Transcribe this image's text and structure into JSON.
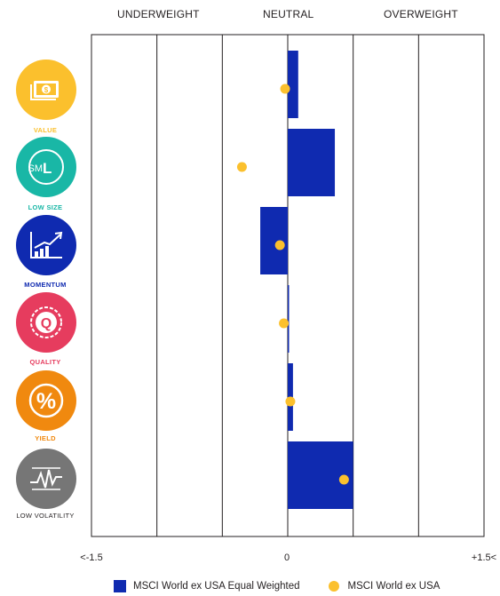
{
  "headers": {
    "left": "UNDERWEIGHT",
    "center": "NEUTRAL",
    "right": "OVERWEIGHT"
  },
  "factors": [
    {
      "label": "VALUE",
      "color": "#fbc02d",
      "icon": "money-bill-icon",
      "glyph": "$"
    },
    {
      "label": "LOW SIZE",
      "color": "#19b7a6",
      "icon": "size-sml-icon",
      "glyph_small": "SM",
      "glyph_large": "L"
    },
    {
      "label": "MOMENTUM",
      "color": "#0f2ab0",
      "icon": "trend-chart-icon"
    },
    {
      "label": "QUALITY",
      "color": "#e63c5e",
      "icon": "quality-badge-icon",
      "glyph": "Q"
    },
    {
      "label": "YIELD",
      "color": "#f0890f",
      "icon": "percent-icon",
      "glyph": "%"
    },
    {
      "label": "LOW VOLATILITY",
      "color": "#767676",
      "label_color": "#231f20",
      "icon": "volatility-wave-icon"
    }
  ],
  "x_ticks": {
    "left": "<-1.5",
    "center": "0",
    "right": "+1.5<"
  },
  "legend": {
    "bar_label": "MSCI World ex USA Equal Weighted",
    "dot_label": "MSCI World ex USA"
  },
  "colors": {
    "bar": "#0f2ab0",
    "dot": "#fbc02d",
    "grid": "#231f20"
  },
  "chart_data": {
    "type": "bar",
    "orientation": "horizontal",
    "categories": [
      "VALUE",
      "LOW SIZE",
      "MOMENTUM",
      "QUALITY",
      "YIELD",
      "LOW VOLATILITY"
    ],
    "series": [
      {
        "name": "MSCI World ex USA Equal Weighted",
        "type": "bar",
        "values": [
          0.08,
          0.36,
          -0.21,
          0.01,
          0.04,
          0.5
        ]
      },
      {
        "name": "MSCI World ex USA",
        "type": "dot",
        "values": [
          -0.02,
          -0.35,
          -0.06,
          -0.03,
          0.02,
          0.43
        ]
      }
    ],
    "xlim": [
      -1.5,
      1.5
    ],
    "x_gridlines": [
      -1.5,
      -1.0,
      -0.5,
      0,
      0.5,
      1.0,
      1.5
    ],
    "grid": true,
    "legend_position": "bottom"
  }
}
